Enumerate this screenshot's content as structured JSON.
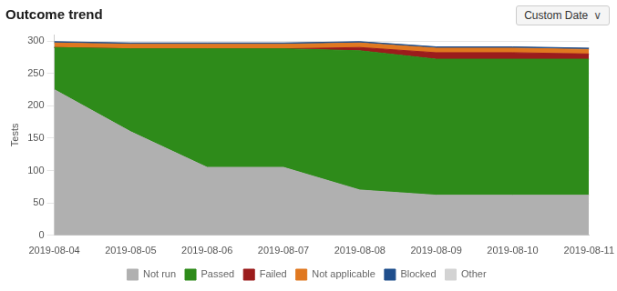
{
  "chart_data": {
    "type": "area",
    "title": "Outcome trend",
    "y_label": "Tests",
    "categories": [
      "2019-08-04",
      "2019-08-05",
      "2019-08-06",
      "2019-08-07",
      "2019-08-08",
      "2019-08-09",
      "2019-08-10",
      "2019-08-11"
    ],
    "series": [
      {
        "name": "Not run",
        "color": "#b0b0b0",
        "values": [
          225,
          160,
          105,
          105,
          70,
          62,
          62,
          62
        ]
      },
      {
        "name": "Passed",
        "color": "#2e8b1a",
        "values": [
          65,
          128,
          183,
          183,
          215,
          210,
          210,
          210
        ]
      },
      {
        "name": "Failed",
        "color": "#9b1c1c",
        "values": [
          0,
          0,
          0,
          0,
          5,
          10,
          10,
          8
        ]
      },
      {
        "name": "Not applicable",
        "color": "#e07820",
        "values": [
          7,
          7,
          7,
          7,
          7,
          7,
          7,
          7
        ]
      },
      {
        "name": "Blocked",
        "color": "#1f4e8c",
        "values": [
          2,
          2,
          2,
          2,
          2,
          2,
          2,
          2
        ]
      },
      {
        "name": "Other",
        "color": "#d3d3d3",
        "values": [
          0,
          0,
          0,
          0,
          0,
          0,
          0,
          0
        ]
      }
    ],
    "stacked": true,
    "ylim": [
      0,
      310
    ],
    "yticks": [
      0,
      50,
      100,
      150,
      200,
      250,
      300
    ],
    "grid": true,
    "legend": "bottom",
    "annotations": [
      "Custom Date",
      "∨"
    ]
  }
}
